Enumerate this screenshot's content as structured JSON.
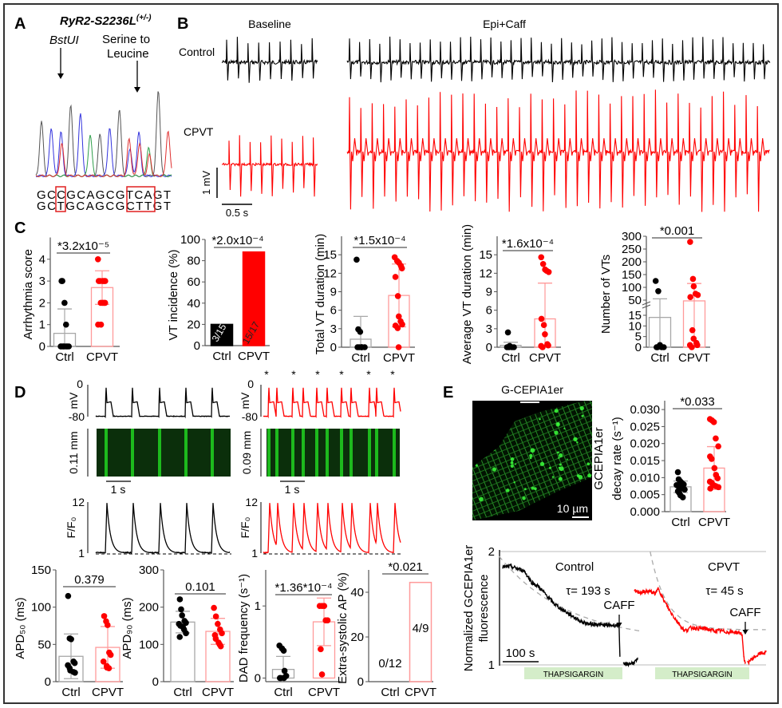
{
  "panel_labels": {
    "a": "A",
    "b": "B",
    "c": "C",
    "d": "D",
    "e": "E"
  },
  "colors": {
    "ctrl": "#000000",
    "cpvt": "#ff0000",
    "ctrl_bar_outline": "#a8a8a8",
    "cpvt_bar_outline": "#ff9a9a",
    "thapsigargin_box": "#d4edc9",
    "fit_dashed": "#aaaaaa",
    "fluorescence": "#22dd22"
  },
  "panel_a": {
    "title": "RyR2-S2236L",
    "title_sup": "(+/-)",
    "enzyme_label": "BstUI",
    "mutation_label_1": "Serine to",
    "mutation_label_2": "Leucine",
    "sequence_wt": "GCCGCAGCGTCAGT",
    "sequence_mut": "GCTGCAGCGCTTGT"
  },
  "panel_b": {
    "baseline": "Baseline",
    "epi_caff": "Epi+Caff",
    "control": "Control",
    "cpvt": "CPVT",
    "scale_v": "1 mV",
    "scale_t": "0.5 s"
  },
  "panel_d": {
    "mv": "mV",
    "v_top": "0",
    "v_bottom": "-80",
    "ctrl_length": "0.11 mm",
    "cpvt_length": "0.09 mm",
    "scale_t": "1 s",
    "ff0": "F/F₀",
    "ff_top": "12",
    "ff_bottom": "1",
    "asterisk": "*"
  },
  "panel_e": {
    "image_title": "G-CEPIA1er",
    "image_scale": "10 µm"
  },
  "chart_data": [
    {
      "id": "arrhythmia-score",
      "type": "bar-scatter",
      "ylabel": "Arrhythmia score",
      "categories": [
        "Ctrl",
        "CPVT"
      ],
      "ylim": [
        0,
        5
      ],
      "yticks": [
        0,
        1,
        2,
        3,
        4
      ],
      "means": [
        0.6,
        2.7
      ],
      "sd": [
        1.12,
        0.77
      ],
      "points": [
        [
          3,
          3,
          2,
          1,
          0,
          0,
          0,
          0,
          0,
          0,
          0,
          0
        ],
        [
          4,
          3,
          3,
          3,
          3,
          3,
          2,
          2,
          2,
          2,
          1,
          1
        ]
      ],
      "p_value": "*3.2x10⁻⁵"
    },
    {
      "id": "vt-incidence",
      "type": "bar",
      "ylabel": "VT incidence (%)",
      "categories": [
        "Ctrl",
        "CPVT"
      ],
      "ylim": [
        0,
        100
      ],
      "yticks": [
        0,
        20,
        40,
        60,
        80,
        100
      ],
      "values": [
        20,
        88.2
      ],
      "bar_labels": [
        "3/15",
        "15/17"
      ],
      "filled": true,
      "p_value": "*2.0x10⁻⁴"
    },
    {
      "id": "total-vt-duration",
      "type": "bar-scatter",
      "ylabel": "Total VT duration (min)",
      "categories": [
        "Ctrl",
        "CPVT"
      ],
      "ylim": [
        0,
        18
      ],
      "yticks": [
        0,
        3,
        6,
        9,
        12,
        15
      ],
      "means": [
        1.3,
        8.4
      ],
      "sd": [
        3.7,
        5.1
      ],
      "points": [
        [
          14.2,
          2.9,
          2.5,
          0,
          0,
          0,
          0,
          0,
          0
        ],
        [
          14.6,
          14.0,
          13.7,
          13.2,
          12.8,
          11.4,
          8.3,
          5.0,
          4.2,
          3.7,
          3.5,
          3.1,
          0
        ]
      ],
      "p_value": "*1.5x10⁻⁴"
    },
    {
      "id": "average-vt-duration",
      "type": "bar-scatter",
      "ylabel": "Average VT duration (min)",
      "categories": [
        "Ctrl",
        "CPVT"
      ],
      "ylim": [
        0,
        18
      ],
      "yticks": [
        0,
        3,
        6,
        9,
        12,
        15
      ],
      "means": [
        0.3,
        4.6
      ],
      "sd": [
        0.5,
        5.8
      ],
      "points": [
        [
          2.4,
          0.2,
          0.1,
          0,
          0,
          0,
          0
        ],
        [
          14.6,
          13.5,
          12.6,
          12.4,
          12.2,
          4.6,
          3.6,
          2.1,
          0.5,
          0.3,
          0.2,
          0
        ]
      ],
      "p_value": "*1.6x10⁻⁴"
    },
    {
      "id": "number-of-vts",
      "type": "bar-scatter",
      "broken_axis": [
        20,
        50
      ],
      "ylabel": "Number of VTs",
      "categories": [
        "Ctrl",
        "CPVT"
      ],
      "ylim": [
        0,
        300
      ],
      "yticks": [
        0,
        5,
        10,
        15,
        50,
        100,
        150,
        200,
        250,
        300
      ],
      "means": [
        14,
        45
      ],
      "sd": [
        41,
        70
      ],
      "points": [
        [
          125,
          85,
          1,
          0,
          0,
          0,
          0
        ],
        [
          278,
          133,
          104,
          75,
          70,
          62,
          8,
          4,
          2,
          1,
          1,
          0
        ]
      ],
      "p_value": "*0.001"
    },
    {
      "id": "apd50",
      "type": "bar-scatter",
      "ylabel": "APD₅₀ (ms)",
      "categories": [
        "Ctrl",
        "CPVT"
      ],
      "ylim": [
        0,
        150
      ],
      "yticks": [
        0,
        50,
        100,
        150
      ],
      "means": [
        34,
        46
      ],
      "sd": [
        30,
        28
      ],
      "points": [
        [
          115,
          58,
          57,
          27,
          25,
          22,
          18,
          15,
          13,
          12
        ],
        [
          88,
          81,
          76,
          39,
          36,
          27,
          21,
          19,
          18
        ]
      ],
      "p_value": "0.379"
    },
    {
      "id": "apd90",
      "type": "bar-scatter",
      "ylabel": "APD₉₀ (ms)",
      "categories": [
        "Ctrl",
        "CPVT"
      ],
      "ylim": [
        0,
        300
      ],
      "yticks": [
        0,
        100,
        200,
        300
      ],
      "means": [
        160,
        135
      ],
      "sd": [
        29,
        35
      ],
      "points": [
        [
          221,
          194,
          178,
          163,
          158,
          155,
          150,
          147,
          140,
          130,
          120
        ],
        [
          198,
          175,
          155,
          140,
          130,
          125,
          115,
          105,
          100,
          95
        ]
      ],
      "p_value": "0.101"
    },
    {
      "id": "dad-frequency",
      "type": "bar-scatter",
      "ylabel": "DAD frequency (s⁻¹)",
      "categories": [
        "Ctrl",
        "CPVT"
      ],
      "ylim": [
        -0.05,
        1.5
      ],
      "yticks": [
        0,
        1
      ],
      "means": [
        0.12,
        0.78
      ],
      "sd": [
        0.18,
        0.33
      ],
      "points": [
        [
          0.45,
          0.41,
          0.38,
          0.1,
          0.03,
          0,
          0,
          0
        ],
        [
          1.0,
          1.0,
          1.0,
          0.8,
          0.8,
          0.4,
          0.05
        ]
      ],
      "p_value": "*1.36*10⁻⁴"
    },
    {
      "id": "extra-systolic-ap",
      "type": "bar",
      "ylabel": "Extra-systolic AP (%)",
      "categories": [
        "Ctrl",
        "CPVT"
      ],
      "ylim": [
        0,
        50
      ],
      "yticks": [
        0,
        20,
        40
      ],
      "values": [
        0,
        44.4
      ],
      "bar_labels": [
        "0/12",
        "4/9"
      ],
      "filled": false,
      "p_value": "*0.021"
    },
    {
      "id": "gcepia-decay-rate",
      "type": "bar-scatter",
      "ylabel": [
        "GCEPIA1er",
        "decay rate (s⁻¹)"
      ],
      "categories": [
        "Ctrl",
        "CPVT"
      ],
      "ylim": [
        0,
        0.0326
      ],
      "yticks": [
        0,
        0.005,
        0.01,
        0.015,
        0.02,
        0.025,
        0.03
      ],
      "ytick_decimals": 3,
      "means": [
        0.0073,
        0.0128
      ],
      "sd": [
        0.0017,
        0.0063
      ],
      "points": [
        [
          0.0116,
          0.0095,
          0.009,
          0.0085,
          0.008,
          0.0078,
          0.0075,
          0.007,
          0.0068,
          0.0065,
          0.006,
          0.0055,
          0.0048,
          0.0042
        ],
        [
          0.0272,
          0.0268,
          0.0263,
          0.0215,
          0.0192,
          0.0162,
          0.0155,
          0.0128,
          0.0108,
          0.0098,
          0.0088,
          0.0085,
          0.0078,
          0.0075,
          0.0072,
          0.0068
        ]
      ],
      "p_value": "*0.033"
    },
    {
      "id": "gcepia-trace",
      "type": "line",
      "ylabel": [
        "Normalized GCEPIA1er",
        "fluorescence"
      ],
      "ylim": [
        1,
        2
      ],
      "yticks": [
        1,
        2
      ],
      "scale_bar": "100 s",
      "drug_label": "THAPSIGARGIN",
      "caff_label": "CAFF",
      "series": [
        {
          "name": "Control",
          "tau_label": "τ= 193 s",
          "tau_s": 193,
          "t": [
            0,
            20,
            40,
            60,
            80,
            100,
            120,
            140,
            160,
            180,
            200,
            220,
            240,
            260,
            280,
            300,
            320,
            324,
            327,
            null,
            335,
            350,
            365,
            378
          ],
          "y": [
            1.86,
            1.87,
            1.85,
            1.83,
            1.73,
            1.69,
            1.62,
            1.55,
            1.5,
            1.46,
            1.42,
            1.38,
            1.36,
            1.36,
            1.35,
            1.35,
            1.35,
            1.36,
            1.0,
            null,
            1.0,
            1.01,
            1.02,
            1.05
          ]
        },
        {
          "name": "CPVT",
          "tau_label": "τ= 45 s",
          "tau_s": 45,
          "t": [
            0,
            20,
            40,
            60,
            67,
            80,
            100,
            120,
            140,
            160,
            180,
            200,
            220,
            240,
            260,
            280,
            295,
            300,
            305,
            310,
            null,
            315,
            330,
            350,
            367
          ],
          "y": [
            1.65,
            1.64,
            1.65,
            1.63,
            1.68,
            1.58,
            1.47,
            1.38,
            1.3,
            1.33,
            1.32,
            1.32,
            1.3,
            1.3,
            1.29,
            1.29,
            1.28,
            1.27,
            1.06,
            1.0,
            null,
            1.02,
            1.06,
            1.1,
            1.11
          ]
        }
      ]
    }
  ]
}
